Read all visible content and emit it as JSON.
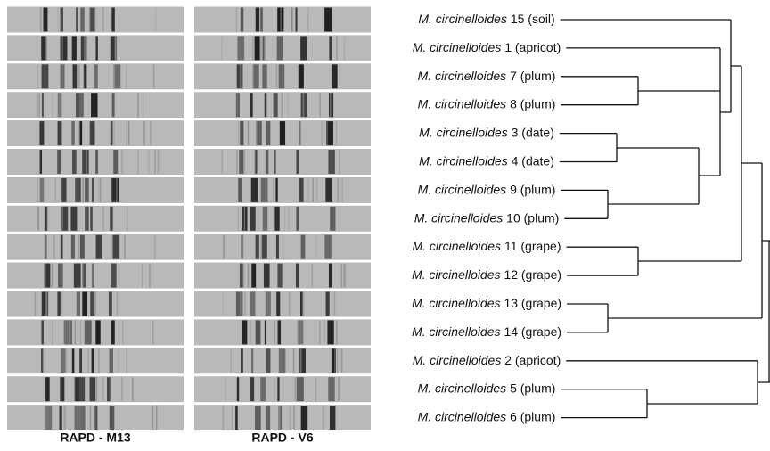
{
  "gels": [
    {
      "label": "RAPD - M13"
    },
    {
      "label": "RAPD - V6"
    }
  ],
  "leaves": [
    {
      "species": "M. circinelloides",
      "strain": "15 (soil)"
    },
    {
      "species": "M. circinelloides",
      "strain": "1 (apricot)"
    },
    {
      "species": "M. circinelloides",
      "strain": "7 (plum)"
    },
    {
      "species": "M. circinelloides",
      "strain": "8 (plum)"
    },
    {
      "species": "M. circinelloides",
      "strain": "3 (date)"
    },
    {
      "species": "M. circinelloides",
      "strain": "4 (date)"
    },
    {
      "species": "M. circinelloides",
      "strain": "9 (plum)"
    },
    {
      "species": "M. circinelloides",
      "strain": "10 (plum)"
    },
    {
      "species": "M. circinelloides",
      "strain": "11 (grape)"
    },
    {
      "species": "M. circinelloides",
      "strain": "12 (grape)"
    },
    {
      "species": "M. circinelloides",
      "strain": "13 (grape)"
    },
    {
      "species": "M. circinelloides",
      "strain": "14 (grape)"
    },
    {
      "species": "M. circinelloides",
      "strain": "2 (apricot)"
    },
    {
      "species": "M. circinelloides",
      "strain": "5 (plum)"
    },
    {
      "species": "M. circinelloides",
      "strain": "6 (plum)"
    }
  ]
}
